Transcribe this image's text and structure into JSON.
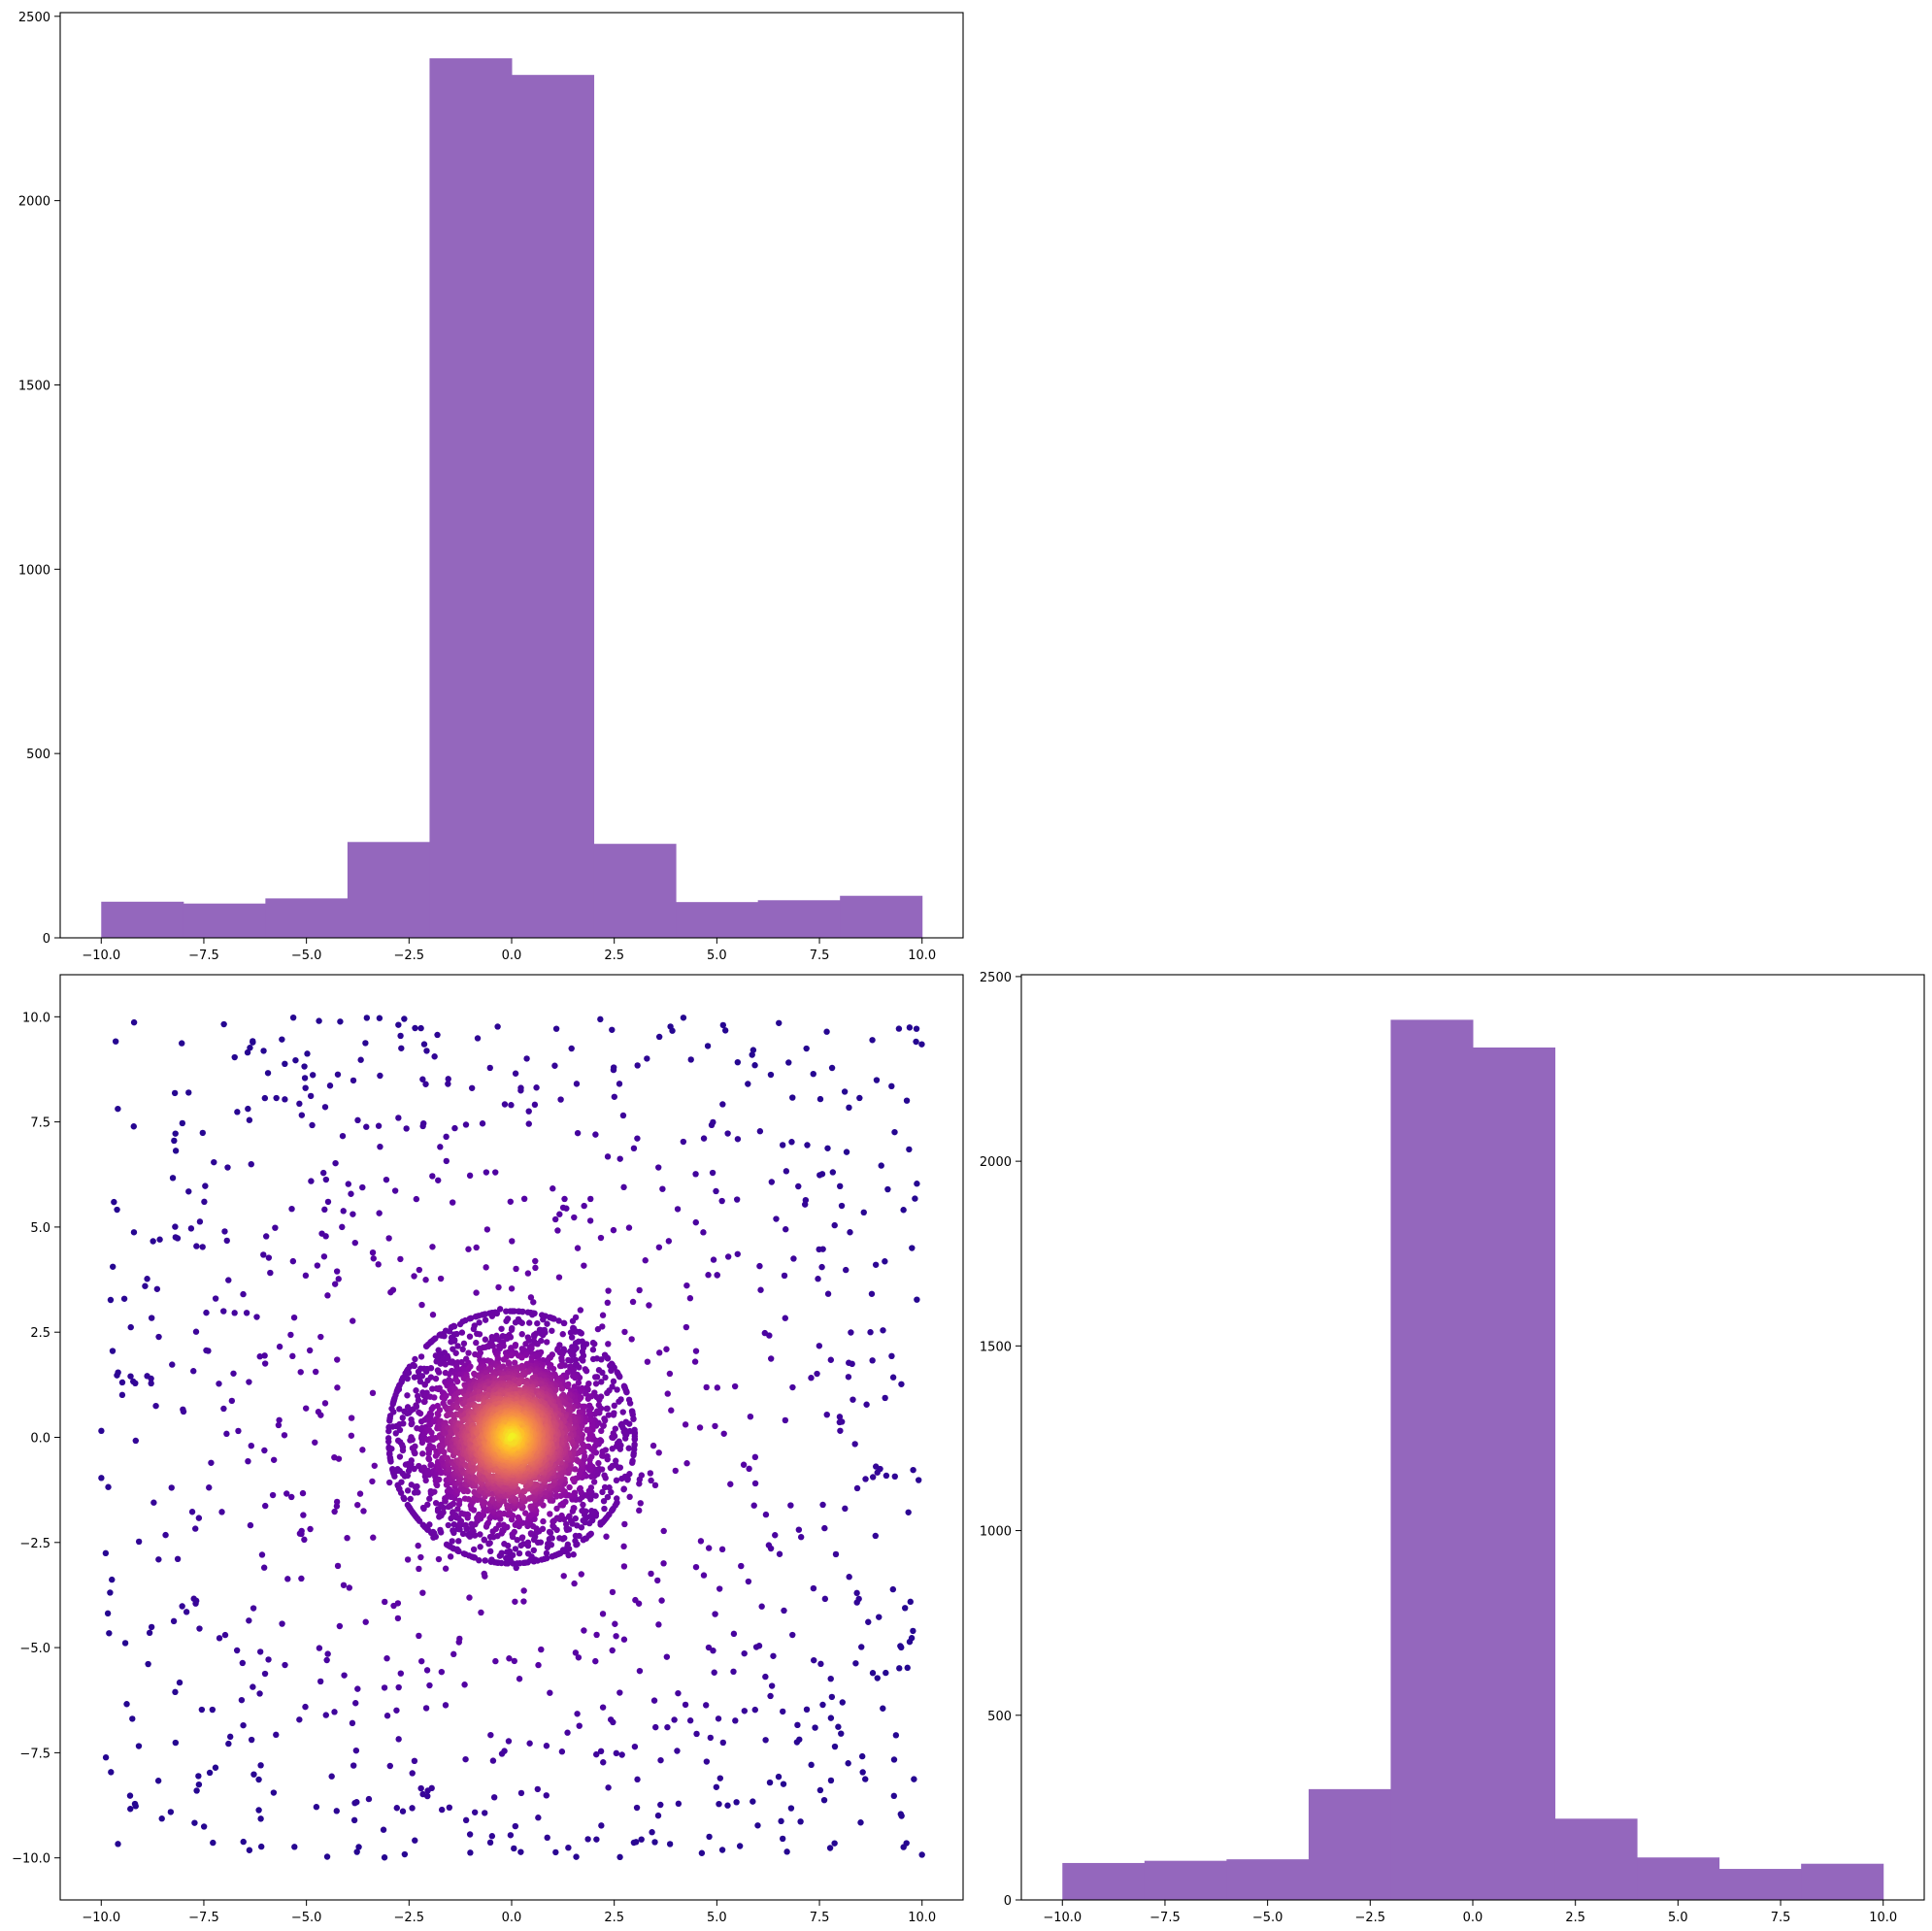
{
  "chart_data": [
    {
      "id": "hist-x",
      "type": "bar",
      "subtype": "histogram",
      "title": "",
      "xlabel": "",
      "ylabel": "",
      "bin_edges": [
        -10,
        -8,
        -6,
        -4,
        -2,
        0,
        2,
        4,
        6,
        8,
        10
      ],
      "values": [
        98,
        93,
        107,
        260,
        2386,
        2341,
        255,
        97,
        102,
        114
      ],
      "xlim": [
        -11,
        11
      ],
      "ylim": [
        0,
        2510
      ],
      "xticks": [
        -10.0,
        -7.5,
        -5.0,
        -2.5,
        0.0,
        2.5,
        5.0,
        7.5,
        10.0
      ],
      "xtick_labels": [
        "−10.0",
        "−7.5",
        "−5.0",
        "−2.5",
        "0.0",
        "2.5",
        "5.0",
        "7.5",
        "10.0"
      ],
      "yticks": [
        0,
        500,
        1000,
        1500,
        2000,
        2500
      ],
      "ytick_labels": [
        "0",
        "500",
        "1000",
        "1500",
        "2000",
        "2500"
      ],
      "color": "#9467bd",
      "grid": false
    },
    {
      "id": "scatter-xy",
      "type": "scatter",
      "title": "",
      "xlabel": "",
      "ylabel": "",
      "description_of_points": "about 1000 points spread uniformly over [-10,10]x[-10,10] plus about 4000 points in a dense disc of radius ~3 centred at (0,0); colour encodes point density",
      "n_uniform": 1000,
      "n_cluster": 4000,
      "cluster_center": [
        0,
        0
      ],
      "cluster_radius": 3,
      "xlim": [
        -11,
        11
      ],
      "ylim": [
        -11,
        11
      ],
      "xticks": [
        -10.0,
        -7.5,
        -5.0,
        -2.5,
        0.0,
        2.5,
        5.0,
        7.5,
        10.0
      ],
      "xtick_labels": [
        "−10.0",
        "−7.5",
        "−5.0",
        "−2.5",
        "0.0",
        "2.5",
        "5.0",
        "7.5",
        "10.0"
      ],
      "yticks": [
        -10.0,
        -7.5,
        -5.0,
        -2.5,
        0.0,
        2.5,
        5.0,
        7.5,
        10.0
      ],
      "ytick_labels": [
        "−10.0",
        "−7.5",
        "−5.0",
        "−2.5",
        "0.0",
        "2.5",
        "5.0",
        "7.5",
        "10.0"
      ],
      "colormap": "plasma",
      "colormap_stops": [
        "#0d0887",
        "#5302a3",
        "#8b0aa5",
        "#b83289",
        "#db5c68",
        "#f48849",
        "#febd2a",
        "#f0f921"
      ],
      "grid": false
    },
    {
      "id": "hist-y",
      "type": "bar",
      "subtype": "histogram",
      "title": "",
      "xlabel": "",
      "ylabel": "",
      "bin_edges": [
        -10,
        -8,
        -6,
        -4,
        -2,
        0,
        2,
        4,
        6,
        8,
        10
      ],
      "values": [
        100,
        106,
        110,
        300,
        2383,
        2308,
        220,
        115,
        84,
        98
      ],
      "xlim": [
        -11,
        11
      ],
      "ylim": [
        0,
        2505
      ],
      "xticks": [
        -10.0,
        -7.5,
        -5.0,
        -2.5,
        0.0,
        2.5,
        5.0,
        7.5,
        10.0
      ],
      "xtick_labels": [
        "−10.0",
        "−7.5",
        "−5.0",
        "−2.5",
        "0.0",
        "2.5",
        "5.0",
        "7.5",
        "10.0"
      ],
      "yticks": [
        0,
        500,
        1000,
        1500,
        2000,
        2500
      ],
      "ytick_labels": [
        "0",
        "500",
        "1000",
        "1500",
        "2000",
        "2500"
      ],
      "color": "#9467bd",
      "grid": false
    }
  ]
}
